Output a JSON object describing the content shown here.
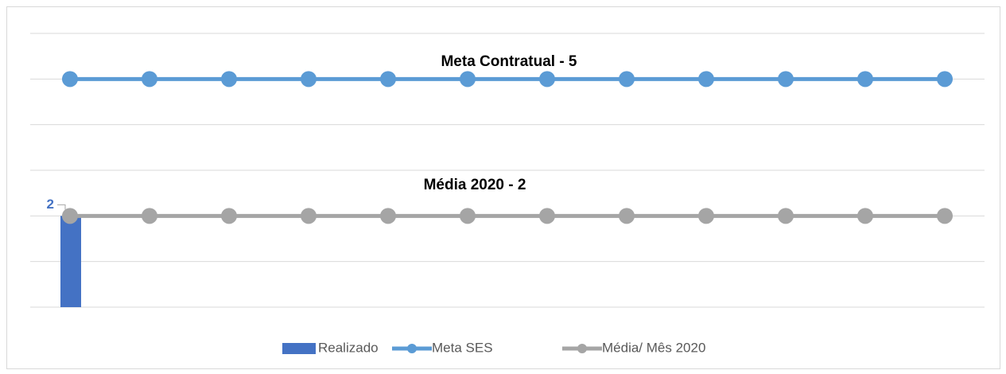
{
  "chart_data": {
    "type": "bar-line",
    "categories": [
      null,
      null,
      null,
      null,
      null,
      null,
      null,
      null,
      null,
      null,
      null,
      null
    ],
    "series": [
      {
        "name": "Realizado",
        "type": "bar",
        "color": "#4472c4",
        "values": [
          2,
          null,
          null,
          null,
          null,
          null,
          null,
          null,
          null,
          null,
          null,
          null
        ]
      },
      {
        "name": "Meta SES",
        "type": "line",
        "color": "#5b9bd5",
        "values": [
          5,
          5,
          5,
          5,
          5,
          5,
          5,
          5,
          5,
          5,
          5,
          5
        ]
      },
      {
        "name": "Média/ Mês 2020",
        "type": "line",
        "color": "#a5a5a5",
        "values": [
          2,
          2,
          2,
          2,
          2,
          2,
          2,
          2,
          2,
          2,
          2,
          2
        ]
      }
    ],
    "annotations": [
      "Meta  Contratual - 5",
      "Média   2020 - 2"
    ],
    "ylim": [
      0,
      6
    ],
    "yticks": [
      0,
      1,
      2,
      3,
      4,
      5,
      6
    ],
    "grid": true,
    "legend": "bottom"
  }
}
